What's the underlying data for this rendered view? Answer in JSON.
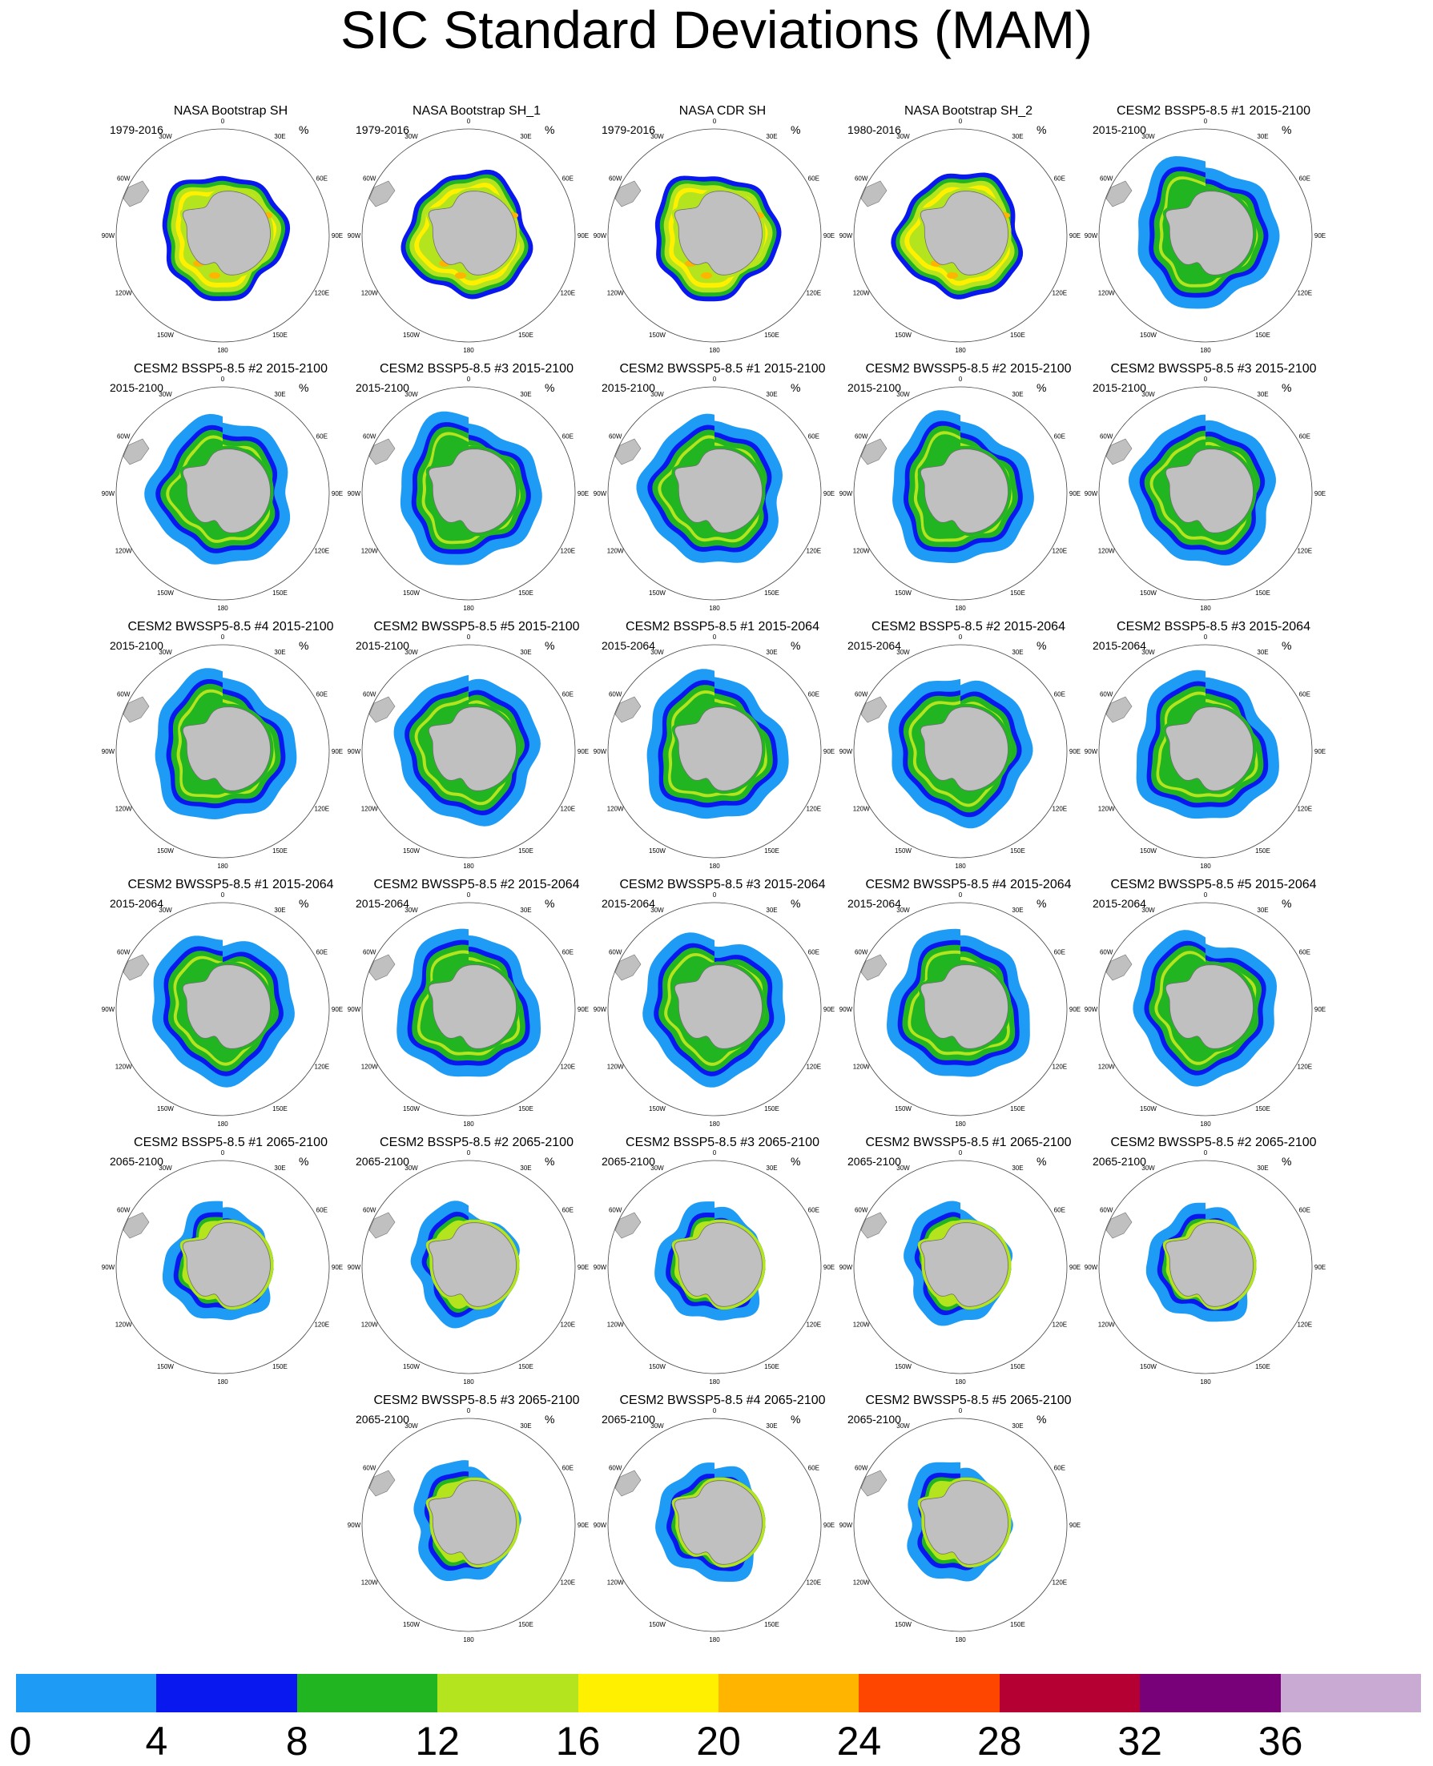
{
  "title": "SIC Standard Deviations (MAM)",
  "panel_unit": "%",
  "longitude_labels": [
    "0",
    "30E",
    "60E",
    "90E",
    "120E",
    "150E",
    "180",
    "150W",
    "120W",
    "90W",
    "60W",
    "30W"
  ],
  "panels": [
    {
      "title": "NASA Bootstrap SH",
      "period": "1979-2016",
      "kind": "obs"
    },
    {
      "title": "NASA Bootstrap SH_1",
      "period": "1979-2016",
      "kind": "obs"
    },
    {
      "title": "NASA CDR SH",
      "period": "1979-2016",
      "kind": "obs"
    },
    {
      "title": "NASA Bootstrap SH_2",
      "period": "1980-2016",
      "kind": "obs"
    },
    {
      "title": "CESM2 BSSP5-8.5 #1 2015-2100",
      "period": "2015-2100",
      "kind": "full"
    },
    {
      "title": "CESM2 BSSP5-8.5 #2 2015-2100",
      "period": "2015-2100",
      "kind": "full"
    },
    {
      "title": "CESM2 BSSP5-8.5 #3 2015-2100",
      "period": "2015-2100",
      "kind": "full"
    },
    {
      "title": "CESM2 BWSSP5-8.5 #1 2015-2100",
      "period": "2015-2100",
      "kind": "full"
    },
    {
      "title": "CESM2 BWSSP5-8.5 #2 2015-2100",
      "period": "2015-2100",
      "kind": "full"
    },
    {
      "title": "CESM2 BWSSP5-8.5 #3 2015-2100",
      "period": "2015-2100",
      "kind": "full"
    },
    {
      "title": "CESM2 BWSSP5-8.5 #4 2015-2100",
      "period": "2015-2100",
      "kind": "full"
    },
    {
      "title": "CESM2 BWSSP5-8.5 #5 2015-2100",
      "period": "2015-2100",
      "kind": "full"
    },
    {
      "title": "CESM2 BSSP5-8.5 #1 2015-2064",
      "period": "2015-2064",
      "kind": "early"
    },
    {
      "title": "CESM2 BSSP5-8.5 #2 2015-2064",
      "period": "2015-2064",
      "kind": "early"
    },
    {
      "title": "CESM2 BSSP5-8.5 #3 2015-2064",
      "period": "2015-2064",
      "kind": "early"
    },
    {
      "title": "CESM2 BWSSP5-8.5 #1 2015-2064",
      "period": "2015-2064",
      "kind": "early"
    },
    {
      "title": "CESM2 BWSSP5-8.5 #2 2015-2064",
      "period": "2015-2064",
      "kind": "early"
    },
    {
      "title": "CESM2 BWSSP5-8.5 #3 2015-2064",
      "period": "2015-2064",
      "kind": "early"
    },
    {
      "title": "CESM2 BWSSP5-8.5 #4 2015-2064",
      "period": "2015-2064",
      "kind": "early"
    },
    {
      "title": "CESM2 BWSSP5-8.5 #5 2015-2064",
      "period": "2015-2064",
      "kind": "early"
    },
    {
      "title": "CESM2 BSSP5-8.5 #1 2065-2100",
      "period": "2065-2100",
      "kind": "late"
    },
    {
      "title": "CESM2 BSSP5-8.5 #2 2065-2100",
      "period": "2065-2100",
      "kind": "late"
    },
    {
      "title": "CESM2 BSSP5-8.5 #3 2065-2100",
      "period": "2065-2100",
      "kind": "late"
    },
    {
      "title": "CESM2 BWSSP5-8.5 #1 2065-2100",
      "period": "2065-2100",
      "kind": "late"
    },
    {
      "title": "CESM2 BWSSP5-8.5 #2 2065-2100",
      "period": "2065-2100",
      "kind": "late"
    },
    {
      "title": "CESM2 BWSSP5-8.5 #3 2065-2100",
      "period": "2065-2100",
      "kind": "late"
    },
    {
      "title": "CESM2 BWSSP5-8.5 #4 2065-2100",
      "period": "2065-2100",
      "kind": "late"
    },
    {
      "title": "CESM2 BWSSP5-8.5 #5 2065-2100",
      "period": "2065-2100",
      "kind": "late"
    }
  ],
  "colorbar": {
    "labels": [
      "0",
      "4",
      "8",
      "12",
      "16",
      "20",
      "24",
      "28",
      "32",
      "36"
    ],
    "colors": [
      "#1e9bf5",
      "#0a18f0",
      "#22b522",
      "#b4e41e",
      "#fff000",
      "#ffb400",
      "#ff4600",
      "#b40032",
      "#780078",
      "#c8aad2"
    ]
  },
  "map_colors": {
    "land": "#c0c0c0",
    "coast": "#707070"
  }
}
